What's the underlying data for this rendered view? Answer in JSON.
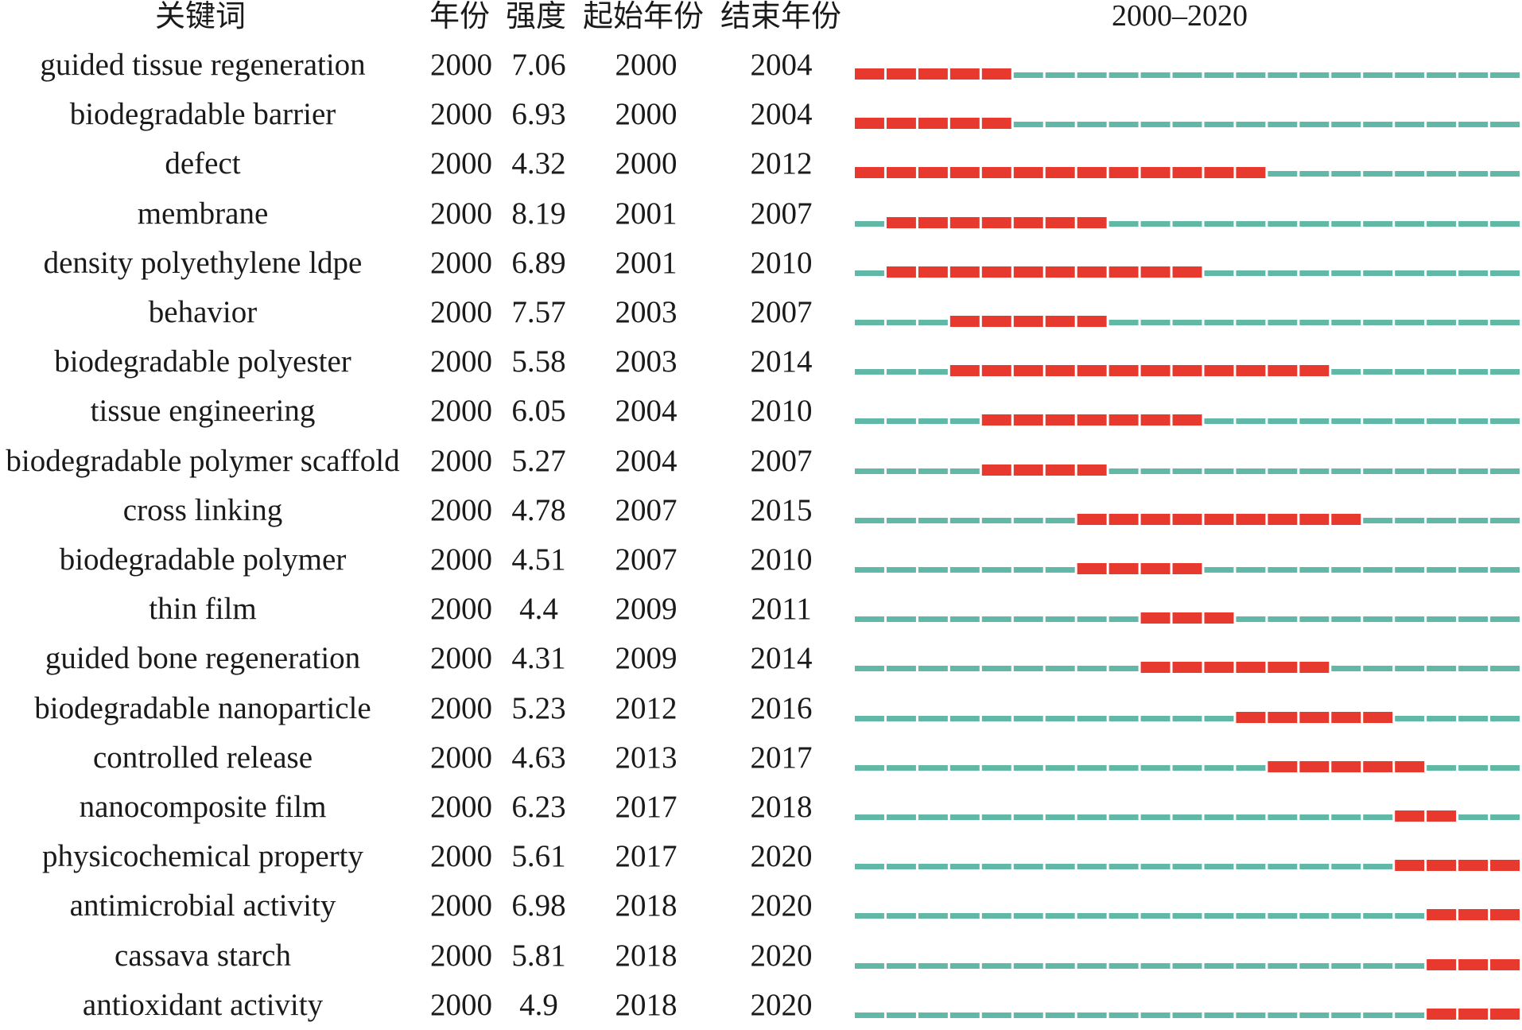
{
  "headers": {
    "keyword": "关键词",
    "year": "年份",
    "strength": "强度",
    "begin": "起始年份",
    "end": "结束年份",
    "range": "2000–2020"
  },
  "chart_data": {
    "type": "table",
    "title": "",
    "year_range": [
      2000,
      2020
    ],
    "colors": {
      "burst": "#e8392e",
      "normal": "#62b8a6"
    },
    "columns": [
      "关键词",
      "年份",
      "强度",
      "起始年份",
      "结束年份",
      "2000–2020"
    ],
    "rows": [
      {
        "keyword": "guided tissue regeneration",
        "year": "2000",
        "strength": "7.06",
        "begin": "2000",
        "end": "2004"
      },
      {
        "keyword": "biodegradable barrier",
        "year": "2000",
        "strength": "6.93",
        "begin": "2000",
        "end": "2004"
      },
      {
        "keyword": "defect",
        "year": "2000",
        "strength": "4.32",
        "begin": "2000",
        "end": "2012"
      },
      {
        "keyword": "membrane",
        "year": "2000",
        "strength": "8.19",
        "begin": "2001",
        "end": "2007"
      },
      {
        "keyword": "density polyethylene ldpe",
        "year": "2000",
        "strength": "6.89",
        "begin": "2001",
        "end": "2010"
      },
      {
        "keyword": "behavior",
        "year": "2000",
        "strength": "7.57",
        "begin": "2003",
        "end": "2007"
      },
      {
        "keyword": "biodegradable polyester",
        "year": "2000",
        "strength": "5.58",
        "begin": "2003",
        "end": "2014"
      },
      {
        "keyword": "tissue engineering",
        "year": "2000",
        "strength": "6.05",
        "begin": "2004",
        "end": "2010"
      },
      {
        "keyword": "biodegradable polymer scaffold",
        "year": "2000",
        "strength": "5.27",
        "begin": "2004",
        "end": "2007"
      },
      {
        "keyword": "cross linking",
        "year": "2000",
        "strength": "4.78",
        "begin": "2007",
        "end": "2015"
      },
      {
        "keyword": "biodegradable polymer",
        "year": "2000",
        "strength": "4.51",
        "begin": "2007",
        "end": "2010"
      },
      {
        "keyword": "thin film",
        "year": "2000",
        "strength": "4.4",
        "begin": "2009",
        "end": "2011"
      },
      {
        "keyword": "guided bone regeneration",
        "year": "2000",
        "strength": "4.31",
        "begin": "2009",
        "end": "2014"
      },
      {
        "keyword": "biodegradable nanoparticle",
        "year": "2000",
        "strength": "5.23",
        "begin": "2012",
        "end": "2016"
      },
      {
        "keyword": "controlled release",
        "year": "2000",
        "strength": "4.63",
        "begin": "2013",
        "end": "2017"
      },
      {
        "keyword": "nanocomposite film",
        "year": "2000",
        "strength": "6.23",
        "begin": "2017",
        "end": "2018"
      },
      {
        "keyword": "physicochemical property",
        "year": "2000",
        "strength": "5.61",
        "begin": "2017",
        "end": "2020"
      },
      {
        "keyword": "antimicrobial activity",
        "year": "2000",
        "strength": "6.98",
        "begin": "2018",
        "end": "2020"
      },
      {
        "keyword": "cassava starch",
        "year": "2000",
        "strength": "5.81",
        "begin": "2018",
        "end": "2020"
      },
      {
        "keyword": "antioxidant activity",
        "year": "2000",
        "strength": "4.9",
        "begin": "2018",
        "end": "2020"
      }
    ]
  }
}
